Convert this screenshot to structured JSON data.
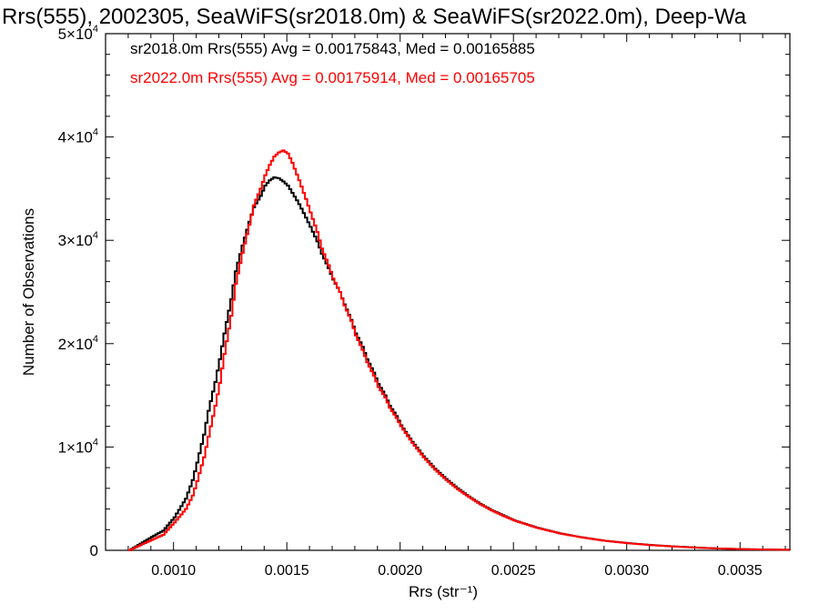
{
  "chart_data": {
    "type": "line",
    "title": "Rrs(555), 2002305, SeaWiFS(sr2018.0m) & SeaWiFS(sr2022.0m), Deep-Wa",
    "xlabel": "Rrs (str⁻¹)",
    "ylabel": "Number of Observations",
    "xlim": [
      0.0007,
      0.00372
    ],
    "ylim": [
      0,
      50000
    ],
    "x_ticks": [
      {
        "value": 0.001,
        "label": "0.0010"
      },
      {
        "value": 0.0015,
        "label": "0.0015"
      },
      {
        "value": 0.002,
        "label": "0.0020"
      },
      {
        "value": 0.0025,
        "label": "0.0025"
      },
      {
        "value": 0.003,
        "label": "0.0030"
      },
      {
        "value": 0.0035,
        "label": "0.0035"
      }
    ],
    "y_ticks": [
      {
        "value": 0,
        "mantissa": "0",
        "exponent": ""
      },
      {
        "value": 10000,
        "mantissa": "1×10",
        "exponent": "4"
      },
      {
        "value": 20000,
        "mantissa": "2×10",
        "exponent": "4"
      },
      {
        "value": 30000,
        "mantissa": "3×10",
        "exponent": "4"
      },
      {
        "value": 40000,
        "mantissa": "4×10",
        "exponent": "4"
      },
      {
        "value": 50000,
        "mantissa": "5×10",
        "exponent": "4"
      }
    ],
    "grid": false,
    "legend_placement": "top-left",
    "series": [
      {
        "name": "sr2018.0m Rrs(555) Avg = 0.00175843, Med = 0.00165885",
        "color": "#000000",
        "step": "histogram",
        "x": [
          0.0008,
          0.0009,
          0.00095,
          0.001,
          0.00105,
          0.00108,
          0.0011,
          0.00113,
          0.00115,
          0.00118,
          0.0012,
          0.00122,
          0.00125,
          0.00127,
          0.0013,
          0.00133,
          0.00135,
          0.00138,
          0.0014,
          0.00142,
          0.00144,
          0.00146,
          0.00148,
          0.0015,
          0.00152,
          0.00155,
          0.00158,
          0.0016,
          0.00163,
          0.00165,
          0.00168,
          0.0017,
          0.00173,
          0.00175,
          0.00178,
          0.0018,
          0.00183,
          0.00185,
          0.00188,
          0.0019,
          0.00193,
          0.00195,
          0.00198,
          0.002,
          0.00205,
          0.0021,
          0.00215,
          0.0022,
          0.00225,
          0.0023,
          0.00235,
          0.0024,
          0.00245,
          0.0025,
          0.0026,
          0.0027,
          0.0028,
          0.0029,
          0.003,
          0.0031,
          0.0032,
          0.0033,
          0.0034,
          0.0035,
          0.0036,
          0.00372
        ],
        "y": [
          0,
          1300,
          1900,
          3200,
          5000,
          6800,
          8500,
          11200,
          13500,
          16300,
          18500,
          21000,
          24300,
          27000,
          29500,
          31800,
          33200,
          34300,
          35300,
          35800,
          36100,
          36000,
          35700,
          35300,
          34600,
          33500,
          32200,
          31300,
          29900,
          28700,
          27300,
          26200,
          25000,
          23800,
          22300,
          21000,
          19700,
          18500,
          17200,
          16100,
          15000,
          14000,
          13000,
          12100,
          10500,
          9100,
          7900,
          6900,
          6000,
          5200,
          4500,
          3900,
          3400,
          2900,
          2200,
          1650,
          1250,
          930,
          700,
          520,
          380,
          270,
          180,
          120,
          80,
          50
        ]
      },
      {
        "name": "sr2022.0m Rrs(555) Avg = 0.00175914, Med = 0.00165705",
        "color": "#ff0000",
        "step": "histogram",
        "x": [
          0.0008,
          0.0009,
          0.00095,
          0.001,
          0.00105,
          0.00108,
          0.0011,
          0.00113,
          0.00115,
          0.00118,
          0.0012,
          0.00122,
          0.00125,
          0.00127,
          0.0013,
          0.00133,
          0.00135,
          0.00138,
          0.0014,
          0.00142,
          0.00144,
          0.00146,
          0.00148,
          0.0015,
          0.00152,
          0.00155,
          0.00158,
          0.0016,
          0.00163,
          0.00165,
          0.00168,
          0.0017,
          0.00173,
          0.00175,
          0.00178,
          0.0018,
          0.00183,
          0.00185,
          0.00188,
          0.0019,
          0.00193,
          0.00195,
          0.00198,
          0.002,
          0.00205,
          0.0021,
          0.00215,
          0.0022,
          0.00225,
          0.0023,
          0.00235,
          0.0024,
          0.00245,
          0.0025,
          0.0026,
          0.0027,
          0.0028,
          0.0029,
          0.003,
          0.0031,
          0.0032,
          0.0033,
          0.0034,
          0.0035,
          0.0036,
          0.00372
        ],
        "y": [
          0,
          1000,
          1500,
          2700,
          4000,
          5300,
          6700,
          9000,
          11000,
          14000,
          16200,
          19000,
          22700,
          25800,
          28800,
          31500,
          33400,
          35000,
          36300,
          37300,
          38100,
          38500,
          38700,
          38400,
          37500,
          35800,
          34000,
          32700,
          30800,
          29200,
          27600,
          26300,
          25000,
          23700,
          22200,
          20800,
          19400,
          18200,
          16900,
          15800,
          14800,
          13800,
          12800,
          12000,
          10400,
          9000,
          7800,
          6800,
          5900,
          5150,
          4450,
          3850,
          3350,
          2880,
          2180,
          1640,
          1240,
          920,
          690,
          510,
          375,
          265,
          178,
          118,
          78,
          48
        ]
      }
    ]
  }
}
